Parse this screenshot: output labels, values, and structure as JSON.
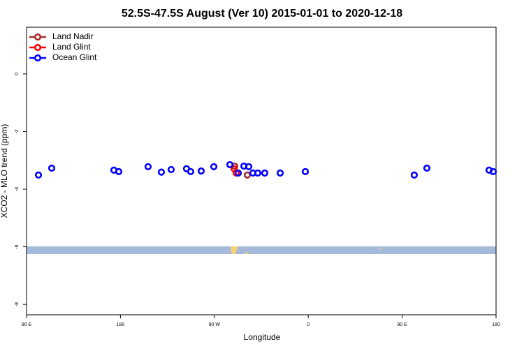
{
  "chart_data": {
    "type": "scatter",
    "title": "52.5S-47.5S August (Ver 10)   2015-01-01 to 2020-12-18",
    "x_label": "Longitude",
    "y_label": "XCO2 - MLO trend (ppm)",
    "xlim": [
      90,
      540
    ],
    "ylim": [
      -8.36,
      1.62
    ],
    "xticks": [
      {
        "value": 90,
        "label": "90 E"
      },
      {
        "value": 180,
        "label": "180"
      },
      {
        "value": 270,
        "label": "90 W"
      },
      {
        "value": 360,
        "label": "0"
      },
      {
        "value": 450,
        "label": "90 E"
      },
      {
        "value": 540,
        "label": "180"
      }
    ],
    "yticks": [
      0,
      -2,
      -4,
      -6,
      -8
    ],
    "legend": "top-left",
    "series": [
      {
        "name": "Land Nadir",
        "color": "#a52a2a",
        "x": [
          289.5,
          301.6
        ],
        "values": [
          -3.2,
          -3.51
        ]
      },
      {
        "name": "Land Glint",
        "color": "#ff0000",
        "x": [
          288.9,
          290.9
        ],
        "values": [
          -3.29,
          -3.44
        ]
      },
      {
        "name": "Ocean Glint",
        "color": "#0000ff",
        "x": [
          101.4,
          114.1,
          173.7,
          178.4,
          206.5,
          219.2,
          228.6,
          243.3,
          247.3,
          257.4,
          269.5,
          284.9,
          292.9,
          298.3,
          303.0,
          307.0,
          311.6,
          318.3,
          333.1,
          357.2,
          461.6,
          473.7,
          533.3,
          537.3
        ],
        "values": [
          -3.51,
          -3.27,
          -3.34,
          -3.39,
          -3.22,
          -3.41,
          -3.32,
          -3.29,
          -3.39,
          -3.37,
          -3.22,
          -3.15,
          -3.44,
          -3.2,
          -3.22,
          -3.44,
          -3.44,
          -3.44,
          -3.44,
          -3.39,
          -3.51,
          -3.27,
          -3.34,
          -3.39
        ]
      }
    ]
  }
}
